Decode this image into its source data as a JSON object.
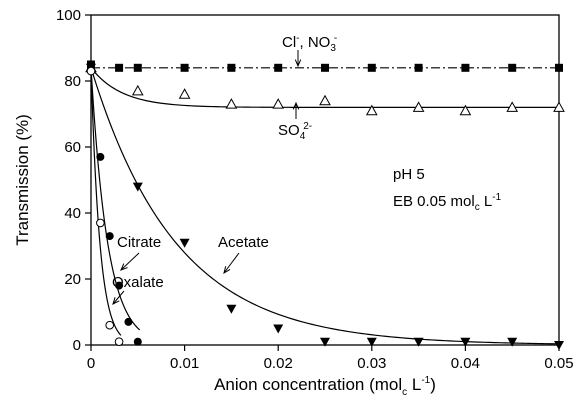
{
  "chart_data": {
    "type": "scatter",
    "xlabel": "Anion concentration (mol",
    "xlabel_sub": "c",
    "xlabel_tail": " L",
    "xlabel_sup": "-1",
    "xlabel_close": ")",
    "ylabel": "Transmission (%)",
    "xlim": [
      0,
      0.05
    ],
    "ylim": [
      0,
      100
    ],
    "x_ticks": [
      0,
      0.01,
      0.02,
      0.03,
      0.04,
      0.05
    ],
    "x_tick_labels": [
      "0",
      "0.01",
      "0.02",
      "0.03",
      "0.04",
      "0.05"
    ],
    "y_ticks": [
      0,
      20,
      40,
      60,
      80,
      100
    ],
    "y_tick_labels": [
      "0",
      "20",
      "40",
      "60",
      "80",
      "100"
    ],
    "grid": false,
    "legend": "none",
    "series": [
      {
        "name": "Cl-, NO3-",
        "marker": "filled-square",
        "line": "dash-dot",
        "x": [
          0,
          0.003,
          0.005,
          0.01,
          0.015,
          0.02,
          0.025,
          0.03,
          0.035,
          0.04,
          0.045,
          0.05
        ],
        "y": [
          85,
          84,
          84,
          84,
          84,
          84,
          84,
          84,
          84,
          84,
          84,
          84
        ]
      },
      {
        "name": "SO4 2-",
        "marker": "open-triangle-up",
        "line": "solid",
        "x": [
          0,
          0.005,
          0.01,
          0.015,
          0.02,
          0.025,
          0.03,
          0.035,
          0.04,
          0.045,
          0.05
        ],
        "y": [
          84,
          77,
          76,
          73,
          73,
          74,
          71,
          72,
          71,
          72,
          72
        ]
      },
      {
        "name": "Acetate",
        "marker": "filled-triangle-down",
        "line": "solid",
        "x": [
          0,
          0.005,
          0.01,
          0.015,
          0.02,
          0.025,
          0.03,
          0.035,
          0.04,
          0.045,
          0.05
        ],
        "y": [
          84,
          48,
          31,
          11,
          5,
          1,
          1,
          1,
          1,
          1,
          0
        ]
      },
      {
        "name": "Citrate",
        "marker": "filled-circle",
        "line": "solid",
        "x": [
          0,
          0.001,
          0.002,
          0.003,
          0.004,
          0.005
        ],
        "y": [
          84,
          57,
          33,
          18,
          7,
          1
        ]
      },
      {
        "name": "Oxalate",
        "marker": "open-circle",
        "line": "solid",
        "x": [
          0,
          0.001,
          0.002,
          0.003
        ],
        "y": [
          83,
          37,
          6,
          1
        ]
      }
    ],
    "annotations": {
      "cl_no3_a": "Cl",
      "cl_no3_a_sup": "-",
      "cl_no3_b": ", NO",
      "cl_no3_b_sub": "3",
      "cl_no3_b_sup": "-",
      "so4": "SO",
      "so4_sub": "4",
      "so4_sup": "2-",
      "ph": "pH 5",
      "eb": "EB 0.05 mol",
      "eb_sub": "c",
      "eb_tail": " L",
      "eb_sup": "-1",
      "citrate": "Citrate",
      "acetate": "Acetate",
      "oxalate": "Oxalate"
    }
  }
}
